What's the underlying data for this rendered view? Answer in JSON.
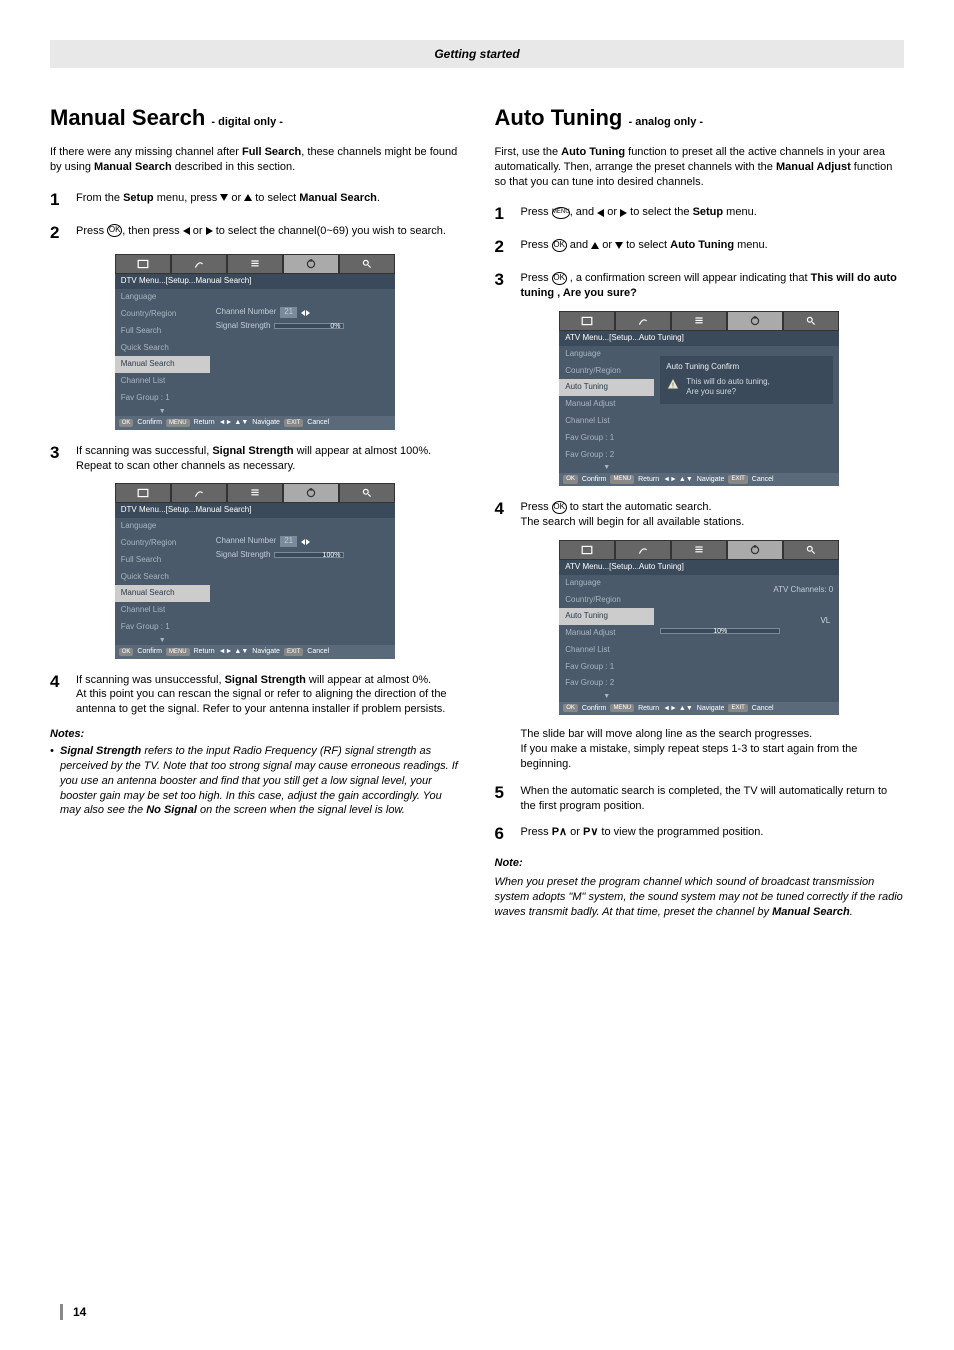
{
  "page": {
    "header": "Getting started",
    "number": "14"
  },
  "left": {
    "title": "Manual Search",
    "title_sub": "- digital only -",
    "intro_a": "If there were any missing channel after ",
    "intro_b": "Full Search",
    "intro_c": ", these channels might be found by using ",
    "intro_d": "Manual Search",
    "intro_e": " described in this section.",
    "step1_a": "From the ",
    "step1_b": "Setup",
    "step1_c": " menu, press ",
    "step1_d": " or ",
    "step1_e": " to select ",
    "step1_f": "Manual Search",
    "step1_g": ".",
    "step2_a": "Press ",
    "step2_b": ", then press ",
    "step2_c": " or ",
    "step2_d": " to select the channel(0~69) you wish to search.",
    "step3_a": "If scanning was successful, ",
    "step3_b": "Signal Strength",
    "step3_c": " will appear at almost 100%. Repeat to scan other channels as necessary.",
    "step4_a": "If scanning was unsuccessful, ",
    "step4_b": "Signal Strength",
    "step4_c": " will appear at almost 0%.",
    "step4_d": "At this point you can rescan the signal or refer to aligning the direction of the antenna to get the signal. Refer to your antenna installer if problem persists.",
    "notes_head": "Notes:",
    "notes_a": "Signal Strength",
    "notes_b": " refers to the input Radio Frequency (RF) signal strength as perceived by the TV. Note that too strong signal may cause erroneous readings. If you use an antenna booster and find that you still get a low signal level, your booster gain may be set too high. In this case, adjust the gain accordingly. You may also see the ",
    "notes_c": "No Signal",
    "notes_d": " on the screen when the signal level is low.",
    "menu1": {
      "crumb": "DTV Menu...[Setup...Manual Search]",
      "items": [
        "Language",
        "Country/Region",
        "Full Search",
        "Quick Search",
        "Manual Search",
        "Channel List",
        "Fav Group : 1"
      ],
      "active_idx": 4,
      "cn_label": "Channel Number",
      "cn_val": "21",
      "ss_label": "Signal Strength",
      "ss_pct": 0,
      "ss_text": "0%"
    },
    "menu2": {
      "crumb": "DTV Menu...[Setup...Manual Search]",
      "items": [
        "Language",
        "Country/Region",
        "Full Search",
        "Quick Search",
        "Manual Search",
        "Channel List",
        "Fav Group : 1"
      ],
      "active_idx": 4,
      "cn_label": "Channel Number",
      "cn_val": "21",
      "ss_label": "Signal Strength",
      "ss_pct": 100,
      "ss_text": "100%"
    }
  },
  "right": {
    "title": "Auto Tuning",
    "title_sub": "- analog only -",
    "intro_a": "First, use the ",
    "intro_b": "Auto Tuning",
    "intro_c": " function to preset all the active channels in your area automatically. Then, arrange the preset channels with the ",
    "intro_d": "Manual Adjust",
    "intro_e": " function so that you can tune into desired channels.",
    "step1_a": "Press ",
    "step1_b": ", and ",
    "step1_c": " or ",
    "step1_d": " to select the ",
    "step1_e": "Setup",
    "step1_f": " menu.",
    "step2_a": "Press ",
    "step2_b": " and ",
    "step2_c": " or ",
    "step2_d": " to select ",
    "step2_e": "Auto Tuning",
    "step2_f": " menu.",
    "step3_a": "Press ",
    "step3_b": " , a confirmation screen will appear indicating that ",
    "step3_c": "This will do auto tuning , Are you sure?",
    "step4_a": "Press ",
    "step4_b": " to start the automatic search.",
    "step4_c": "The search will begin for all available stations.",
    "step4_d": "The slide bar will move along line as the search progresses.",
    "step4_e": "If you make a mistake, simply repeat steps 1-3 to start again from the beginning.",
    "step5_a": "When the automatic search is completed, the TV will automatically return to the first program position.",
    "step6_a": "Press ",
    "step6_b": " or ",
    "step6_c": " to view the programmed position.",
    "note_head": "Note:",
    "note_a": "When you preset the program channel which sound of broadcast transmission system adopts \"M\" system, the sound system may not be tuned correctly if the radio waves transmit badly. At that time, preset the channel by ",
    "note_b": "Manual Search",
    "note_c": ".",
    "p_up": "P∧",
    "p_down": "P∨",
    "menu1": {
      "crumb": "ATV Menu...[Setup...Auto Tuning]",
      "items": [
        "Language",
        "Country/Region",
        "Auto Tuning",
        "Manual Adjust",
        "Channel List",
        "Fav Group : 1",
        "Fav Group : 2"
      ],
      "active_idx": 2,
      "dlg_title": "Auto Tuning Confirm",
      "dlg_l1": "This will do auto tuning,",
      "dlg_l2": "Are you sure?"
    },
    "menu2": {
      "crumb": "ATV Menu...[Setup...Auto Tuning]",
      "items": [
        "Language",
        "Country/Region",
        "Auto Tuning",
        "Manual Adjust",
        "Channel List",
        "Fav Group : 1",
        "Fav Group : 2"
      ],
      "active_idx": 2,
      "ch_label": "ATV Channels:  0",
      "vl": "VL",
      "pct": 10,
      "pct_text": "10%"
    }
  },
  "foot": {
    "ok": "OK",
    "confirm": "Confirm",
    "menu": "MENU",
    "return": "Return",
    "nav": "Navigate",
    "exit": "EXIT",
    "cancel": "Cancel"
  }
}
